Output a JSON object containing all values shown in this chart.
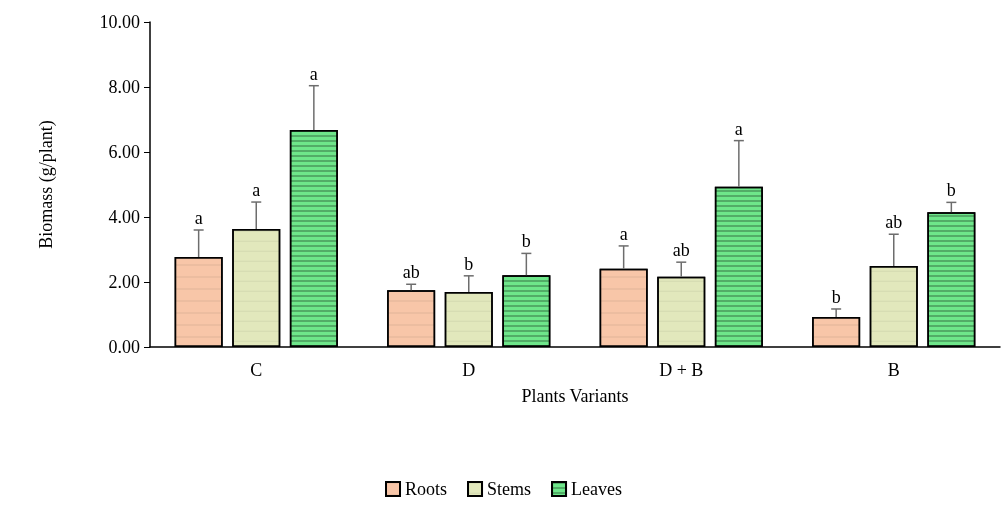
{
  "chart_data": {
    "type": "bar",
    "xlabel": "Plants Variants",
    "ylabel": "Biomass (g/plant)",
    "categories": [
      "C",
      "D",
      "D + B",
      "B"
    ],
    "series": [
      {
        "name": "Roots",
        "color": "#f8c6a8",
        "values": [
          2.77,
          1.75,
          2.41,
          0.92
        ],
        "errors": [
          [
            2.77,
            3.6
          ],
          [
            1.75,
            1.93
          ],
          [
            2.41,
            3.11
          ],
          [
            0.92,
            1.17
          ]
        ],
        "value_labels": [
          "a",
          "ab",
          "a",
          "b"
        ]
      },
      {
        "name": "Stems",
        "color": "#e2e8bc",
        "values": [
          3.63,
          1.69,
          2.16,
          2.49
        ],
        "errors": [
          [
            3.63,
            4.46
          ],
          [
            1.69,
            2.19
          ],
          [
            2.16,
            2.61
          ],
          [
            2.49,
            3.47
          ]
        ],
        "value_labels": [
          "a",
          "b",
          "ab",
          "ab"
        ]
      },
      {
        "name": "Leaves",
        "color": "#6ee68a",
        "values": [
          6.68,
          2.21,
          4.93,
          4.15
        ],
        "errors": [
          [
            6.68,
            8.04
          ],
          [
            2.21,
            2.88
          ],
          [
            4.93,
            6.35
          ],
          [
            4.15,
            4.45
          ]
        ],
        "value_labels": [
          "a",
          "b",
          "a",
          "b"
        ]
      }
    ],
    "ylim": [
      0,
      10
    ],
    "yticks": [
      {
        "value": 0,
        "label": "0.00"
      },
      {
        "value": 2,
        "label": "2.00"
      },
      {
        "value": 4,
        "label": "4.00"
      },
      {
        "value": 6,
        "label": "6.00"
      },
      {
        "value": 8,
        "label": "8.00"
      },
      {
        "value": 10,
        "label": "10.00"
      }
    ],
    "grid": false,
    "legend": "bottom"
  }
}
